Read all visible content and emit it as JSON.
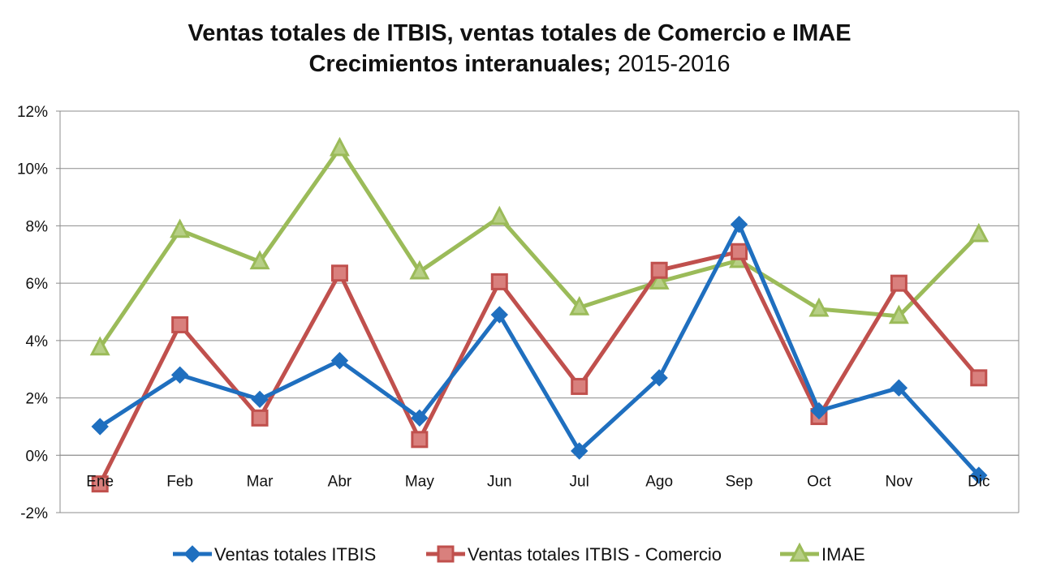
{
  "chart_data": {
    "type": "line",
    "title": {
      "line1": "Ventas totales de ITBIS, ventas totales de Comercio e IMAE",
      "line2_bold": "Crecimientos interanuales;",
      "line2_normal": " 2015-2016"
    },
    "categories": [
      "Ene",
      "Feb",
      "Mar",
      "Abr",
      "May",
      "Jun",
      "Jul",
      "Ago",
      "Sep",
      "Oct",
      "Nov",
      "Dic"
    ],
    "y_ticks": [
      "12%",
      "10%",
      "8%",
      "6%",
      "4%",
      "2%",
      "0%",
      "-2%"
    ],
    "ylim": [
      -2,
      12
    ],
    "grid": true,
    "legend_position": "bottom",
    "series": [
      {
        "name": "Ventas totales ITBIS",
        "color": "#1F6FBF",
        "marker": "diamond",
        "values": [
          1.0,
          2.8,
          1.95,
          3.3,
          1.3,
          4.9,
          0.15,
          2.7,
          8.05,
          1.55,
          2.35,
          -0.7
        ]
      },
      {
        "name": "Ventas totales ITBIS - Comercio",
        "color": "#C0504D",
        "marker": "square",
        "values": [
          -1.0,
          4.55,
          1.3,
          6.35,
          0.55,
          6.05,
          2.4,
          6.45,
          7.1,
          1.35,
          6.0,
          2.7
        ]
      },
      {
        "name": "IMAE",
        "color": "#9BBB59",
        "marker": "triangle",
        "values": [
          3.75,
          7.85,
          6.75,
          10.7,
          6.4,
          8.3,
          5.15,
          6.05,
          6.8,
          5.1,
          4.85,
          7.7
        ]
      }
    ]
  }
}
